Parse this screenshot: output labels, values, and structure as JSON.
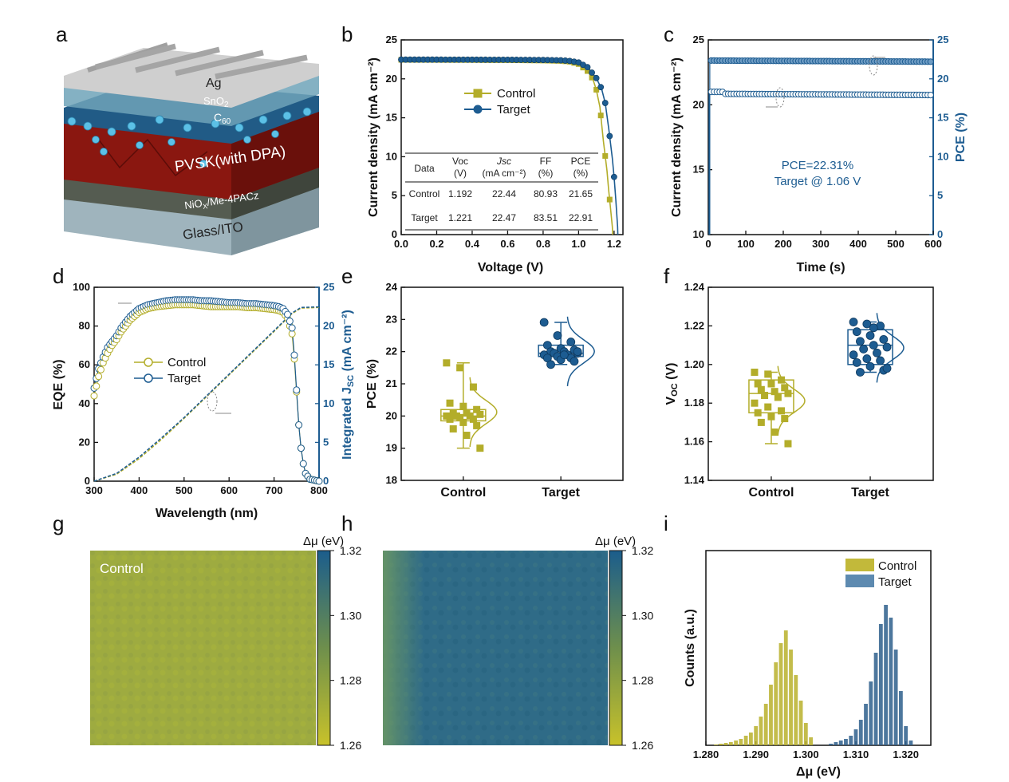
{
  "panel_letters": [
    "a",
    "b",
    "c",
    "d",
    "e",
    "f",
    "g",
    "h",
    "i"
  ],
  "device_layers": {
    "ag": "Ag",
    "sno2": "SnO",
    "sno2_sub": "2",
    "c60": "C",
    "c60_sub": "60",
    "pvsk": "PVSK(with DPA)",
    "nio_a": "NiO",
    "nio_sub": "X",
    "nio_b": "/Me-4PACz",
    "glass": "Glass/ITO"
  },
  "colors": {
    "control": "#b3ad2a",
    "target": "#1d5c91"
  },
  "chart_data": [
    {
      "id": "b",
      "type": "line",
      "xlabel": "Voltage (V)",
      "ylabel": "Current density (mA cm⁻²)",
      "xlim": [
        0,
        1.25
      ],
      "ylim": [
        0,
        25
      ],
      "xticks": [
        "0.0",
        "0.2",
        "0.4",
        "0.6",
        "0.8",
        "1.0",
        "1.2"
      ],
      "yticks": [
        "0",
        "5",
        "10",
        "15",
        "20",
        "25"
      ],
      "legend": [
        "Control",
        "Target"
      ],
      "series": [
        {
          "name": "Control",
          "x": [
            0,
            0.2,
            0.4,
            0.6,
            0.8,
            0.9,
            0.95,
            1.0,
            1.05,
            1.08,
            1.1,
            1.12,
            1.14,
            1.16,
            1.17,
            1.18,
            1.19,
            1.192
          ],
          "y": [
            22.44,
            22.43,
            22.42,
            22.4,
            22.35,
            22.3,
            22.2,
            21.9,
            21.0,
            20.0,
            18.6,
            16.4,
            12.0,
            8.2,
            5.6,
            3.4,
            1.0,
            0
          ]
        },
        {
          "name": "Target",
          "x": [
            0,
            0.2,
            0.4,
            0.6,
            0.8,
            0.9,
            0.95,
            1.0,
            1.05,
            1.1,
            1.13,
            1.15,
            1.17,
            1.19,
            1.2,
            1.21,
            1.22,
            1.221
          ],
          "y": [
            22.47,
            22.47,
            22.46,
            22.45,
            22.42,
            22.38,
            22.3,
            22.1,
            21.5,
            20.1,
            18.7,
            16.9,
            13.6,
            9.8,
            7.4,
            4.4,
            1.0,
            0
          ]
        }
      ],
      "table": {
        "header1": [
          "Data",
          "Voc",
          "Jsc",
          "FF",
          "PCE"
        ],
        "header2": [
          "",
          "(V)",
          "(mA cm⁻²)",
          "(%)",
          "(%)"
        ],
        "rows": [
          [
            "Control",
            "1.192",
            "22.44",
            "80.93",
            "21.65"
          ],
          [
            "Target",
            "1.221",
            "22.47",
            "83.51",
            "22.91"
          ]
        ]
      }
    },
    {
      "id": "c",
      "type": "line",
      "xlabel": "Time (s)",
      "ylabel": "Current density (mA cm⁻²)",
      "ylabel_right": "PCE (%)",
      "xlim": [
        0,
        600
      ],
      "ylim": [
        10,
        25
      ],
      "ylim_right": [
        0,
        25
      ],
      "xticks": [
        "0",
        "100",
        "200",
        "300",
        "400",
        "500",
        "600"
      ],
      "yticks": [
        "10",
        "15",
        "20",
        "25"
      ],
      "yticks_right": [
        "0",
        "5",
        "10",
        "15",
        "20",
        "25"
      ],
      "annotation": [
        "PCE=22.31%",
        "Target @ 1.06 V"
      ],
      "series": [
        {
          "name": "Current density",
          "x": [
            0,
            600
          ],
          "y": [
            20.8,
            20.75
          ]
        },
        {
          "name": "PCE",
          "x": [
            0,
            600
          ],
          "y": [
            22.3,
            22.2
          ]
        }
      ]
    },
    {
      "id": "d",
      "type": "line",
      "xlabel": "Wavelength (nm)",
      "ylabel": "EQE (%)",
      "ylabel_right": "Integrated J",
      "ylabel_right_sub": "SC",
      "ylabel_right_unit": " (mA cm⁻²)",
      "xlim": [
        300,
        800
      ],
      "ylim": [
        0,
        100
      ],
      "ylim_right": [
        0,
        25
      ],
      "xticks": [
        "300",
        "400",
        "500",
        "600",
        "700",
        "800"
      ],
      "yticks": [
        "0",
        "20",
        "40",
        "60",
        "80",
        "100"
      ],
      "yticks_right": [
        "0",
        "5",
        "10",
        "15",
        "20",
        "25"
      ],
      "legend": [
        "Control",
        "Target"
      ],
      "eqe_x": [
        300,
        310,
        320,
        330,
        340,
        350,
        360,
        370,
        380,
        390,
        400,
        420,
        440,
        460,
        480,
        500,
        520,
        540,
        560,
        580,
        600,
        620,
        640,
        660,
        680,
        700,
        710,
        720,
        730,
        740,
        745,
        750,
        755,
        760,
        765,
        770,
        780,
        790,
        800
      ],
      "eqe_control": [
        44,
        54,
        61,
        66,
        70,
        73,
        77,
        80,
        83,
        85,
        87,
        89,
        90,
        90.5,
        91,
        91,
        91,
        90.5,
        90,
        90,
        90,
        90,
        89.5,
        89.5,
        89,
        88.5,
        88,
        87,
        84,
        76,
        63,
        46,
        29,
        17,
        9,
        4,
        1,
        0.5,
        0
      ],
      "eqe_target": [
        48,
        58,
        64,
        69,
        72,
        75,
        79,
        82,
        85,
        87,
        89,
        91,
        92,
        93,
        93.5,
        93.5,
        93.5,
        93,
        93,
        92.5,
        92,
        92,
        91.5,
        91.5,
        91,
        90.5,
        90,
        89,
        86,
        79,
        65,
        47,
        29,
        17,
        9,
        4,
        1,
        0.5,
        0
      ],
      "jsc_x": [
        300,
        350,
        400,
        450,
        500,
        550,
        600,
        650,
        700,
        740,
        760,
        800
      ],
      "jsc_control": [
        0,
        0.9,
        2.9,
        5.4,
        8.1,
        10.9,
        13.7,
        16.5,
        19.3,
        21.6,
        22.3,
        22.4
      ],
      "jsc_target": [
        0,
        1.0,
        3.1,
        5.6,
        8.2,
        11.0,
        13.8,
        16.6,
        19.4,
        21.7,
        22.4,
        22.47
      ]
    },
    {
      "id": "e",
      "type": "scatter",
      "xlabel": "",
      "ylabel": "PCE (%)",
      "ylim": [
        18,
        24
      ],
      "categories": [
        "Control",
        "Target"
      ],
      "yticks": [
        "18",
        "19",
        "20",
        "21",
        "22",
        "23",
        "24"
      ],
      "series": [
        {
          "name": "Control",
          "values": [
            21.65,
            21.5,
            20.9,
            20.4,
            20.3,
            20.2,
            20.1,
            20.1,
            20.05,
            20.0,
            20.0,
            20.0,
            19.95,
            19.9,
            19.9,
            19.8,
            19.7,
            19.6,
            19.4,
            19.0
          ]
        },
        {
          "name": "Target",
          "values": [
            22.91,
            22.5,
            22.3,
            22.2,
            22.1,
            22.05,
            22.0,
            22.0,
            21.95,
            21.95,
            21.9,
            21.9,
            21.85,
            21.8,
            21.8,
            21.75,
            21.7,
            21.6,
            21.9,
            22.0
          ]
        }
      ],
      "box": [
        {
          "q1": 19.85,
          "median": 20.0,
          "q3": 20.2
        },
        {
          "q1": 21.85,
          "median": 21.95,
          "q3": 22.2
        }
      ]
    },
    {
      "id": "f",
      "type": "scatter",
      "xlabel": "",
      "ylabel": "V",
      "ylabel_sub": "OC",
      "ylabel_unit": " (V)",
      "ylim": [
        1.14,
        1.24
      ],
      "categories": [
        "Control",
        "Target"
      ],
      "yticks": [
        "1.14",
        "1.16",
        "1.18",
        "1.20",
        "1.22",
        "1.24"
      ],
      "series": [
        {
          "name": "Control",
          "values": [
            1.196,
            1.195,
            1.192,
            1.19,
            1.19,
            1.188,
            1.187,
            1.186,
            1.185,
            1.184,
            1.183,
            1.18,
            1.178,
            1.176,
            1.175,
            1.173,
            1.172,
            1.17,
            1.165,
            1.159
          ]
        },
        {
          "name": "Target",
          "values": [
            1.222,
            1.221,
            1.22,
            1.217,
            1.215,
            1.213,
            1.212,
            1.21,
            1.209,
            1.208,
            1.206,
            1.205,
            1.203,
            1.202,
            1.201,
            1.199,
            1.197,
            1.196,
            1.219,
            1.198
          ]
        }
      ],
      "box": [
        {
          "q1": 1.175,
          "median": 1.185,
          "q3": 1.192
        },
        {
          "q1": 1.2,
          "median": 1.21,
          "q3": 1.218
        }
      ]
    },
    {
      "id": "g",
      "type": "heatmap",
      "label": "Control",
      "colorbar_title": "Δμ (eV)",
      "colorbar_ticks": [
        "1.32",
        "1.30",
        "1.28",
        "1.26"
      ],
      "range": [
        1.26,
        1.32
      ]
    },
    {
      "id": "h",
      "type": "heatmap",
      "label": "",
      "colorbar_title": "Δμ (eV)",
      "colorbar_ticks": [
        "1.32",
        "1.30",
        "1.28",
        "1.26"
      ],
      "range": [
        1.26,
        1.32
      ]
    },
    {
      "id": "i",
      "type": "bar",
      "xlabel": "Δμ (eV)",
      "ylabel": "Counts (a.u.)",
      "xlim": [
        1.28,
        1.325
      ],
      "xticks": [
        "1.280",
        "1.290",
        "1.300",
        "1.310",
        "1.320"
      ],
      "legend": [
        "Control",
        "Target"
      ],
      "series": [
        {
          "name": "Control",
          "x": [
            1.282,
            1.283,
            1.284,
            1.285,
            1.286,
            1.287,
            1.288,
            1.289,
            1.29,
            1.291,
            1.292,
            1.293,
            1.294,
            1.295,
            1.296,
            1.297,
            1.298,
            1.299,
            1.3,
            1.301
          ],
          "values": [
            0.5,
            1,
            1.5,
            2,
            3,
            4,
            6,
            8,
            12,
            18,
            26,
            38,
            52,
            64,
            72,
            60,
            44,
            28,
            14,
            5
          ]
        },
        {
          "name": "Target",
          "x": [
            1.305,
            1.306,
            1.307,
            1.308,
            1.309,
            1.31,
            1.311,
            1.312,
            1.313,
            1.314,
            1.315,
            1.316,
            1.317,
            1.318,
            1.319,
            1.32,
            1.321
          ],
          "values": [
            1,
            2,
            3,
            4,
            6,
            10,
            16,
            26,
            40,
            58,
            76,
            88,
            80,
            60,
            34,
            12,
            3
          ]
        }
      ]
    }
  ]
}
